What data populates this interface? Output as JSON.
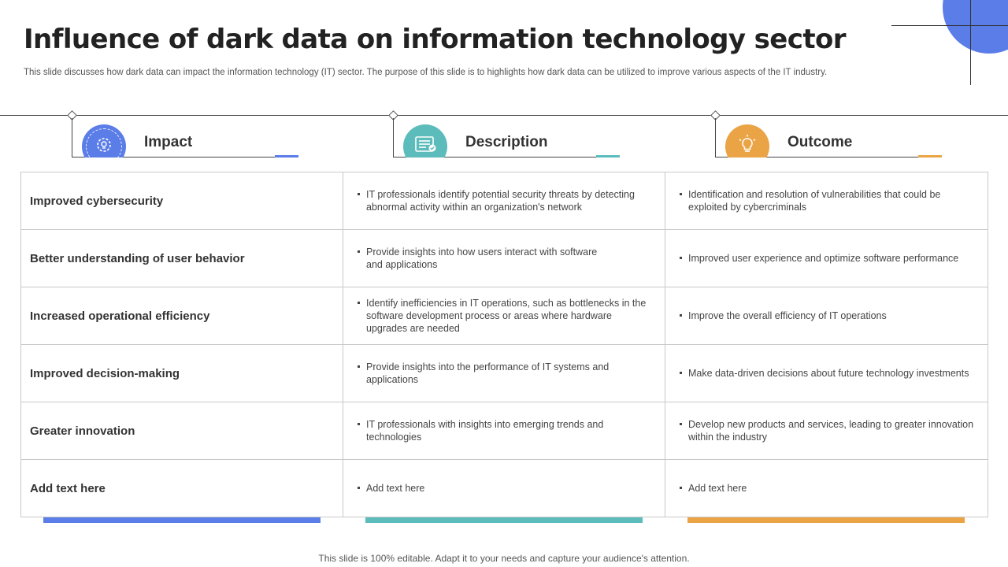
{
  "title": "Influence of dark data on information technology sector",
  "subtitle": "This slide discusses how dark data can impact the information technology (IT) sector. The purpose of this slide is to highlights how dark data can be utilized to improve various aspects of the IT industry.",
  "colors": {
    "blue": "#5b7de8",
    "teal": "#5bbcbb",
    "orange": "#eba445",
    "decoration": "#5b7de8"
  },
  "headers": [
    {
      "label": "Impact",
      "icon": "gear-bulb-icon",
      "color": "#5b7de8"
    },
    {
      "label": "Description",
      "icon": "checklist-icon",
      "color": "#5bbcbb"
    },
    {
      "label": "Outcome",
      "icon": "lightbulb-icon",
      "color": "#eba445"
    }
  ],
  "rows": [
    {
      "impact": "Improved cybersecurity",
      "description": "IT professionals identify potential security threats by detecting abnormal activity within an organization's network",
      "outcome": "Identification and resolution of vulnerabilities that could be exploited by cybercriminals"
    },
    {
      "impact": "Better understanding of user behavior",
      "description": "Provide insights into how users interact with software and applications",
      "outcome": "Improved user experience and optimize software performance"
    },
    {
      "impact": "Increased operational efficiency",
      "description": "Identify inefficiencies in IT operations, such as bottlenecks in the software development process or areas where hardware upgrades are needed",
      "outcome": "Improve the overall efficiency of IT operations"
    },
    {
      "impact": "Improved decision-making",
      "description": "Provide insights into the performance of IT systems and applications",
      "outcome": "Make data-driven decisions about future technology investments"
    },
    {
      "impact": "Greater innovation",
      "description": "IT professionals with insights into emerging trends and technologies",
      "outcome": "Develop new products and services, leading to greater innovation within the industry"
    },
    {
      "impact": "Add text here",
      "description": "Add text here",
      "outcome": "Add text here"
    }
  ],
  "footer": "This slide is 100% editable. Adapt it to your needs and capture your audience's attention."
}
